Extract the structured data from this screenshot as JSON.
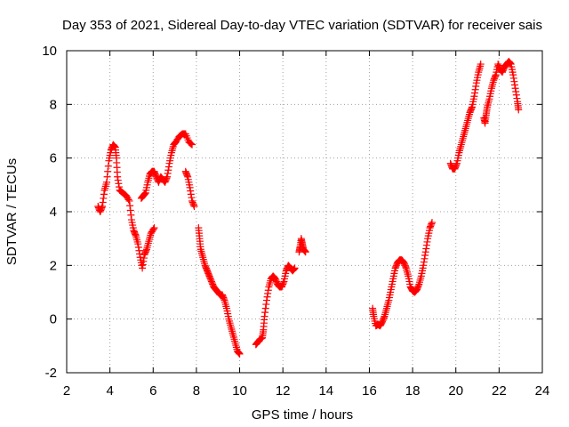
{
  "chart_data": {
    "type": "scatter",
    "title": "Day 353 of 2021, Sidereal Day-to-day VTEC variation (SDTVAR) for receiver sais",
    "xlabel": "GPS time / hours",
    "ylabel": "SDTVAR / TECUs",
    "xlim": [
      2,
      24
    ],
    "ylim": [
      -2,
      10
    ],
    "xticks": [
      "2",
      "4",
      "6",
      "8",
      "10",
      "12",
      "14",
      "16",
      "18",
      "20",
      "22",
      "24"
    ],
    "yticks": [
      "-2",
      "0",
      "2",
      "4",
      "6",
      "8",
      "10"
    ],
    "grid": true,
    "marker": "+",
    "series_color": "#ff0000",
    "series": [
      {
        "name": "SDTVAR",
        "segments": [
          [
            [
              3.45,
              4.2
            ],
            [
              3.55,
              4.0
            ],
            [
              3.65,
              4.2
            ],
            [
              3.75,
              4.8
            ],
            [
              3.85,
              5.1
            ],
            [
              3.95,
              5.9
            ],
            [
              4.05,
              6.3
            ],
            [
              4.15,
              6.5
            ],
            [
              4.25,
              6.4
            ],
            [
              4.3,
              6.0
            ],
            [
              4.35,
              5.3
            ],
            [
              4.45,
              4.8
            ],
            [
              4.6,
              4.7
            ],
            [
              4.75,
              4.6
            ],
            [
              4.9,
              4.4
            ],
            [
              5.0,
              3.7
            ],
            [
              5.1,
              3.3
            ],
            [
              5.2,
              3.1
            ],
            [
              5.3,
              2.8
            ],
            [
              5.4,
              2.3
            ],
            [
              5.5,
              1.9
            ],
            [
              5.6,
              2.4
            ],
            [
              5.7,
              2.6
            ],
            [
              5.8,
              2.9
            ],
            [
              5.9,
              3.2
            ],
            [
              6.05,
              3.4
            ]
          ],
          [
            [
              5.45,
              4.5
            ],
            [
              5.55,
              4.6
            ],
            [
              5.65,
              4.7
            ],
            [
              5.75,
              5.1
            ],
            [
              5.85,
              5.4
            ],
            [
              5.95,
              5.5
            ],
            [
              6.05,
              5.5
            ],
            [
              6.15,
              5.3
            ],
            [
              6.25,
              5.1
            ],
            [
              6.35,
              5.3
            ],
            [
              6.45,
              5.2
            ],
            [
              6.55,
              5.1
            ],
            [
              6.65,
              5.3
            ],
            [
              6.75,
              5.8
            ],
            [
              6.85,
              6.2
            ],
            [
              6.95,
              6.5
            ],
            [
              7.05,
              6.6
            ],
            [
              7.2,
              6.8
            ],
            [
              7.35,
              6.9
            ],
            [
              7.5,
              6.9
            ],
            [
              7.65,
              6.6
            ],
            [
              7.8,
              6.5
            ]
          ],
          [
            [
              7.5,
              5.5
            ],
            [
              7.6,
              5.3
            ],
            [
              7.7,
              4.9
            ],
            [
              7.8,
              4.4
            ],
            [
              7.9,
              4.2
            ]
          ],
          [
            [
              8.1,
              3.4
            ],
            [
              8.15,
              3.0
            ],
            [
              8.2,
              2.6
            ],
            [
              8.3,
              2.3
            ],
            [
              8.4,
              2.0
            ],
            [
              8.5,
              1.8
            ],
            [
              8.6,
              1.6
            ],
            [
              8.7,
              1.4
            ],
            [
              8.8,
              1.2
            ],
            [
              8.9,
              1.1
            ],
            [
              9.0,
              1.0
            ],
            [
              9.1,
              0.9
            ],
            [
              9.2,
              0.9
            ],
            [
              9.3,
              0.7
            ],
            [
              9.4,
              0.4
            ],
            [
              9.5,
              0.0
            ],
            [
              9.6,
              -0.3
            ],
            [
              9.7,
              -0.6
            ],
            [
              9.8,
              -0.9
            ],
            [
              9.9,
              -1.2
            ],
            [
              10.0,
              -1.3
            ]
          ],
          [
            [
              10.75,
              -0.95
            ],
            [
              10.85,
              -0.85
            ],
            [
              10.95,
              -0.75
            ],
            [
              11.05,
              -0.7
            ],
            [
              11.1,
              -0.4
            ],
            [
              11.15,
              0.1
            ],
            [
              11.25,
              0.7
            ],
            [
              11.35,
              1.2
            ],
            [
              11.45,
              1.5
            ],
            [
              11.55,
              1.6
            ],
            [
              11.65,
              1.5
            ],
            [
              11.75,
              1.3
            ],
            [
              11.85,
              1.2
            ],
            [
              11.95,
              1.2
            ],
            [
              12.05,
              1.4
            ],
            [
              12.15,
              1.8
            ],
            [
              12.25,
              2.0
            ],
            [
              12.35,
              1.9
            ],
            [
              12.45,
              1.8
            ],
            [
              12.55,
              1.9
            ]
          ],
          [
            [
              12.75,
              2.5
            ],
            [
              12.8,
              2.7
            ],
            [
              12.85,
              3.0
            ],
            [
              12.9,
              2.8
            ],
            [
              12.95,
              2.6
            ],
            [
              13.05,
              2.5
            ]
          ],
          [
            [
              16.15,
              0.4
            ],
            [
              16.2,
              0.1
            ],
            [
              16.3,
              -0.25
            ],
            [
              16.4,
              -0.2
            ],
            [
              16.5,
              -0.25
            ],
            [
              16.6,
              -0.1
            ],
            [
              16.7,
              0.1
            ],
            [
              16.8,
              0.4
            ],
            [
              16.9,
              0.7
            ],
            [
              17.0,
              1.1
            ],
            [
              17.1,
              1.5
            ],
            [
              17.2,
              1.9
            ],
            [
              17.3,
              2.1
            ],
            [
              17.4,
              2.2
            ],
            [
              17.5,
              2.2
            ],
            [
              17.6,
              2.1
            ],
            [
              17.7,
              1.9
            ],
            [
              17.8,
              1.6
            ],
            [
              17.9,
              1.2
            ],
            [
              18.0,
              1.05
            ],
            [
              18.1,
              1.0
            ],
            [
              18.2,
              1.1
            ],
            [
              18.3,
              1.3
            ],
            [
              18.4,
              1.6
            ],
            [
              18.5,
              2.0
            ],
            [
              18.6,
              2.5
            ],
            [
              18.7,
              3.0
            ],
            [
              18.8,
              3.4
            ],
            [
              18.9,
              3.6
            ]
          ],
          [
            [
              19.75,
              5.8
            ],
            [
              19.85,
              5.6
            ],
            [
              19.95,
              5.6
            ],
            [
              20.05,
              5.8
            ],
            [
              20.15,
              6.2
            ],
            [
              20.25,
              6.5
            ],
            [
              20.35,
              6.8
            ],
            [
              20.45,
              7.1
            ],
            [
              20.55,
              7.4
            ],
            [
              20.65,
              7.7
            ],
            [
              20.75,
              7.9
            ],
            [
              20.85,
              8.3
            ],
            [
              20.95,
              8.8
            ],
            [
              21.05,
              9.2
            ],
            [
              21.15,
              9.5
            ]
          ],
          [
            [
              21.3,
              7.5
            ],
            [
              21.35,
              7.3
            ],
            [
              21.4,
              7.6
            ],
            [
              21.45,
              7.9
            ],
            [
              21.55,
              8.2
            ],
            [
              21.65,
              8.6
            ],
            [
              21.75,
              8.9
            ],
            [
              21.85,
              9.1
            ],
            [
              21.95,
              9.5
            ],
            [
              22.05,
              9.3
            ],
            [
              22.15,
              9.2
            ],
            [
              22.25,
              9.4
            ],
            [
              22.35,
              9.5
            ],
            [
              22.45,
              9.6
            ],
            [
              22.55,
              9.5
            ],
            [
              22.65,
              9.1
            ],
            [
              22.75,
              8.6
            ],
            [
              22.85,
              8.1
            ],
            [
              22.9,
              7.8
            ]
          ]
        ]
      }
    ]
  }
}
